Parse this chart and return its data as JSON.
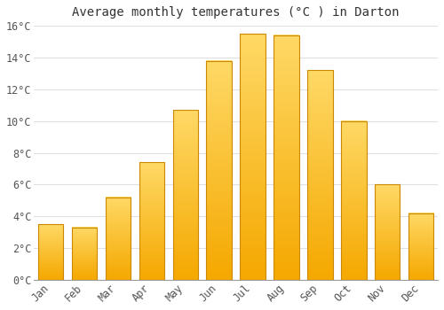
{
  "title": "Average monthly temperatures (°C ) in Darton",
  "months": [
    "Jan",
    "Feb",
    "Mar",
    "Apr",
    "May",
    "Jun",
    "Jul",
    "Aug",
    "Sep",
    "Oct",
    "Nov",
    "Dec"
  ],
  "values": [
    3.5,
    3.3,
    5.2,
    7.4,
    10.7,
    13.8,
    15.5,
    15.4,
    13.2,
    10.0,
    6.0,
    4.2
  ],
  "bar_color_bottom": "#F5A800",
  "bar_color_top": "#FFD966",
  "bar_edge_color": "#CC8800",
  "ylim": [
    0,
    16
  ],
  "yticks": [
    0,
    2,
    4,
    6,
    8,
    10,
    12,
    14,
    16
  ],
  "ytick_labels": [
    "0°C",
    "2°C",
    "4°C",
    "6°C",
    "8°C",
    "10°C",
    "12°C",
    "14°C",
    "16°C"
  ],
  "background_color": "#ffffff",
  "plot_bg_color": "#ffffff",
  "grid_color": "#e0e0e0",
  "title_fontsize": 10,
  "tick_fontsize": 8.5,
  "bar_width": 0.75
}
